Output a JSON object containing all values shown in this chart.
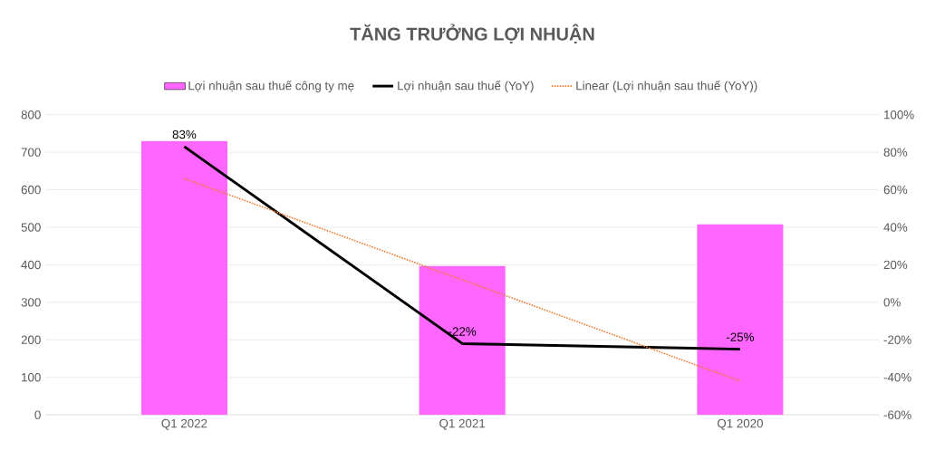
{
  "chart_data": {
    "type": "bar",
    "title": "TĂNG TRƯỞNG LỢI NHUẬN",
    "categories": [
      "Q1 2022",
      "Q1 2021",
      "Q1 2020"
    ],
    "series": [
      {
        "name": "Lợi nhuận sau thuế công ty mẹ",
        "color": "#ff66ff",
        "values": [
          730,
          397,
          508
        ]
      },
      {
        "name": "Lợi nhuận sau thuế (YoY)",
        "type": "line",
        "axis": "y2",
        "color": "#000000",
        "values": [
          83,
          -22,
          -25
        ],
        "value_labels": [
          "83%",
          "-22%",
          "-25%"
        ]
      },
      {
        "name": "Linear (Lợi nhuận sau thuế (YoY))",
        "type": "line",
        "axis": "y2",
        "color": "#ed7d31",
        "line_style": "dotted",
        "values": [
          66,
          12,
          -42
        ]
      }
    ],
    "ylim": [
      0,
      800
    ],
    "yticks": [
      0,
      100,
      200,
      300,
      400,
      500,
      600,
      700,
      800
    ],
    "y2lim": [
      -60,
      100
    ],
    "y2ticks": [
      {
        "value": -60,
        "label": "-60%"
      },
      {
        "value": -40,
        "label": "-40%"
      },
      {
        "value": -20,
        "label": "-20%"
      },
      {
        "value": 0,
        "label": "0%"
      },
      {
        "value": 20,
        "label": "20%"
      },
      {
        "value": 40,
        "label": "40%"
      },
      {
        "value": 60,
        "label": "60%"
      },
      {
        "value": 80,
        "label": "80%"
      },
      {
        "value": 100,
        "label": "100%"
      }
    ],
    "grid": "y",
    "legend": "top"
  }
}
